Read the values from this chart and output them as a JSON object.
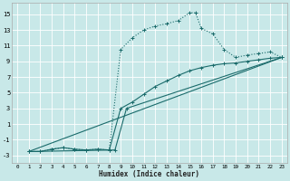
{
  "bg_color": "#c8e8e8",
  "grid_color": "#ffffff",
  "line_color": "#1a6b6b",
  "xlabel": "Humidex (Indice chaleur)",
  "xlim": [
    -0.5,
    23.5
  ],
  "ylim": [
    -4.0,
    16.5
  ],
  "xticks": [
    0,
    1,
    2,
    3,
    4,
    5,
    6,
    7,
    8,
    9,
    10,
    11,
    12,
    13,
    14,
    15,
    16,
    17,
    18,
    19,
    20,
    21,
    22,
    23
  ],
  "yticks": [
    -3,
    -1,
    1,
    3,
    5,
    7,
    9,
    11,
    13,
    15
  ],
  "curve1_x": [
    1,
    2,
    3,
    4,
    5,
    6,
    7,
    8,
    9,
    10,
    11,
    12,
    13,
    14,
    15,
    15.5,
    16,
    17,
    18,
    19,
    20,
    21,
    22,
    23
  ],
  "curve1_y": [
    -2.5,
    -2.5,
    -2.2,
    -2.0,
    -2.2,
    -2.3,
    -2.2,
    -2.3,
    10.5,
    12.0,
    13.0,
    13.5,
    13.8,
    14.2,
    15.2,
    15.2,
    13.2,
    12.5,
    10.5,
    9.5,
    9.8,
    10.0,
    10.2,
    9.5
  ],
  "curve1_dotted": true,
  "curve2_x": [
    1,
    2,
    3,
    4,
    5,
    6,
    7,
    8,
    9,
    10,
    11,
    12,
    13,
    14,
    15,
    16,
    17,
    18,
    19,
    20,
    21,
    22,
    23
  ],
  "curve2_y": [
    -2.5,
    -2.5,
    -2.2,
    -2.0,
    -2.2,
    -2.3,
    -2.2,
    -2.3,
    3.0,
    3.8,
    4.8,
    5.8,
    6.5,
    7.2,
    7.8,
    8.2,
    8.5,
    8.7,
    8.8,
    9.0,
    9.2,
    9.4,
    9.5
  ],
  "curve3_x": [
    1,
    8.5,
    9.5,
    23
  ],
  "curve3_y": [
    -2.5,
    -2.3,
    3.0,
    9.5
  ],
  "curve4_x": [
    1,
    23
  ],
  "curve4_y": [
    -2.5,
    9.5
  ]
}
